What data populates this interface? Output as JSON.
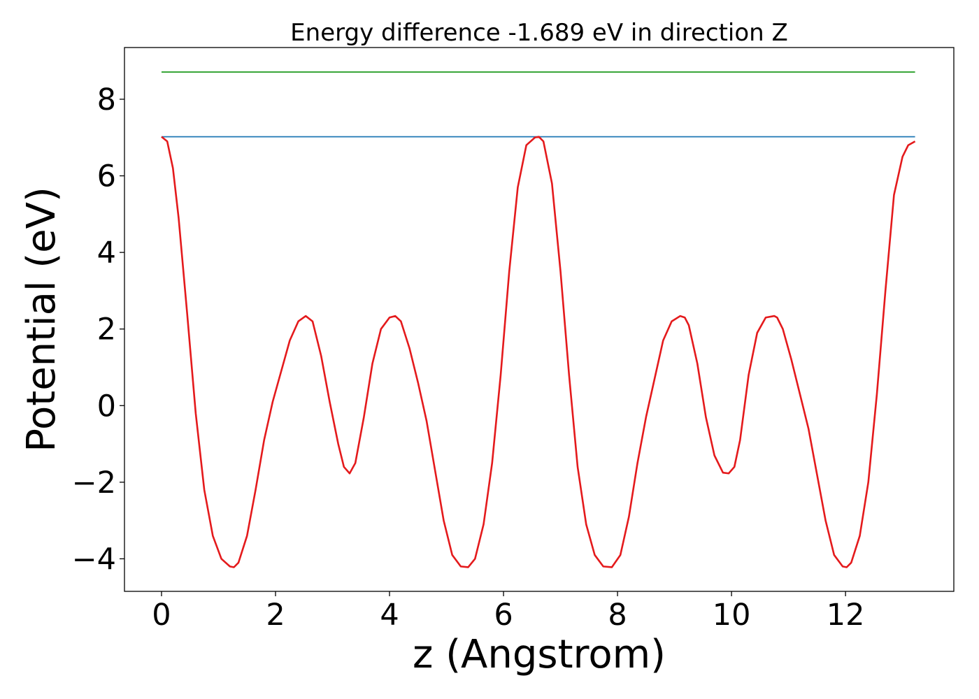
{
  "chart_data": {
    "type": "line",
    "title": "Energy difference -1.689 eV in direction Z",
    "xlabel": "z (Angstrom)",
    "ylabel": "Potential (eV)",
    "xlim": [
      -0.65,
      13.9
    ],
    "ylim": [
      -4.85,
      9.35
    ],
    "xticks": [
      0,
      2,
      4,
      6,
      8,
      10,
      12
    ],
    "yticks": [
      -4,
      -2,
      0,
      2,
      4,
      6,
      8
    ],
    "xtick_labels": [
      "0",
      "2",
      "4",
      "6",
      "8",
      "10",
      "12"
    ],
    "ytick_labels": [
      "−4",
      "−2",
      "0",
      "2",
      "4",
      "6",
      "8"
    ],
    "grid": false,
    "series": [
      {
        "color": "#1f77b4",
        "x": [
          0,
          13.22
        ],
        "y": [
          7.02,
          7.02
        ]
      },
      {
        "color": "#2ca02c",
        "x": [
          0,
          13.22
        ],
        "y": [
          8.71,
          8.71
        ]
      },
      {
        "color": "#e41a1c",
        "x": [
          0,
          0.1,
          0.2,
          0.3,
          0.45,
          0.6,
          0.75,
          0.9,
          1.05,
          1.2,
          1.27,
          1.35,
          1.5,
          1.65,
          1.8,
          1.95,
          2.1,
          2.25,
          2.4,
          2.53,
          2.65,
          2.8,
          2.95,
          3.1,
          3.2,
          3.3,
          3.4,
          3.55,
          3.7,
          3.85,
          4.0,
          4.1,
          4.2,
          4.35,
          4.5,
          4.65,
          4.8,
          4.95,
          5.1,
          5.25,
          5.38,
          5.5,
          5.65,
          5.8,
          5.95,
          6.1,
          6.25,
          6.4,
          6.55,
          6.62,
          6.7,
          6.85,
          7.0,
          7.15,
          7.3,
          7.45,
          7.6,
          7.75,
          7.9,
          8.05,
          8.2,
          8.35,
          8.5,
          8.65,
          8.8,
          8.95,
          9.1,
          9.18,
          9.25,
          9.4,
          9.55,
          9.7,
          9.85,
          9.95,
          10.05,
          10.15,
          10.3,
          10.45,
          10.6,
          10.75,
          10.8,
          10.9,
          11.05,
          11.2,
          11.35,
          11.5,
          11.65,
          11.8,
          11.95,
          12.02,
          12.1,
          12.25,
          12.4,
          12.55,
          12.7,
          12.85,
          13.0,
          13.1,
          13.22
        ],
        "y": [
          7.02,
          6.9,
          6.2,
          4.9,
          2.4,
          -0.2,
          -2.2,
          -3.4,
          -4.0,
          -4.2,
          -4.22,
          -4.1,
          -3.4,
          -2.2,
          -0.9,
          0.1,
          0.9,
          1.7,
          2.2,
          2.34,
          2.2,
          1.3,
          0.1,
          -1.0,
          -1.6,
          -1.77,
          -1.5,
          -0.3,
          1.1,
          2.0,
          2.3,
          2.34,
          2.2,
          1.5,
          0.6,
          -0.4,
          -1.7,
          -3.0,
          -3.9,
          -4.2,
          -4.22,
          -4.0,
          -3.1,
          -1.5,
          0.8,
          3.5,
          5.7,
          6.8,
          7.0,
          7.02,
          6.9,
          5.8,
          3.5,
          0.8,
          -1.6,
          -3.1,
          -3.9,
          -4.2,
          -4.22,
          -3.9,
          -2.9,
          -1.5,
          -0.3,
          0.7,
          1.7,
          2.2,
          2.34,
          2.3,
          2.1,
          1.1,
          -0.3,
          -1.3,
          -1.75,
          -1.77,
          -1.6,
          -0.9,
          0.8,
          1.9,
          2.3,
          2.34,
          2.3,
          2.0,
          1.2,
          0.3,
          -0.6,
          -1.8,
          -3.0,
          -3.9,
          -4.2,
          -4.22,
          -4.1,
          -3.4,
          -2.0,
          0.3,
          3.0,
          5.5,
          6.5,
          6.8,
          6.9
        ]
      }
    ]
  }
}
